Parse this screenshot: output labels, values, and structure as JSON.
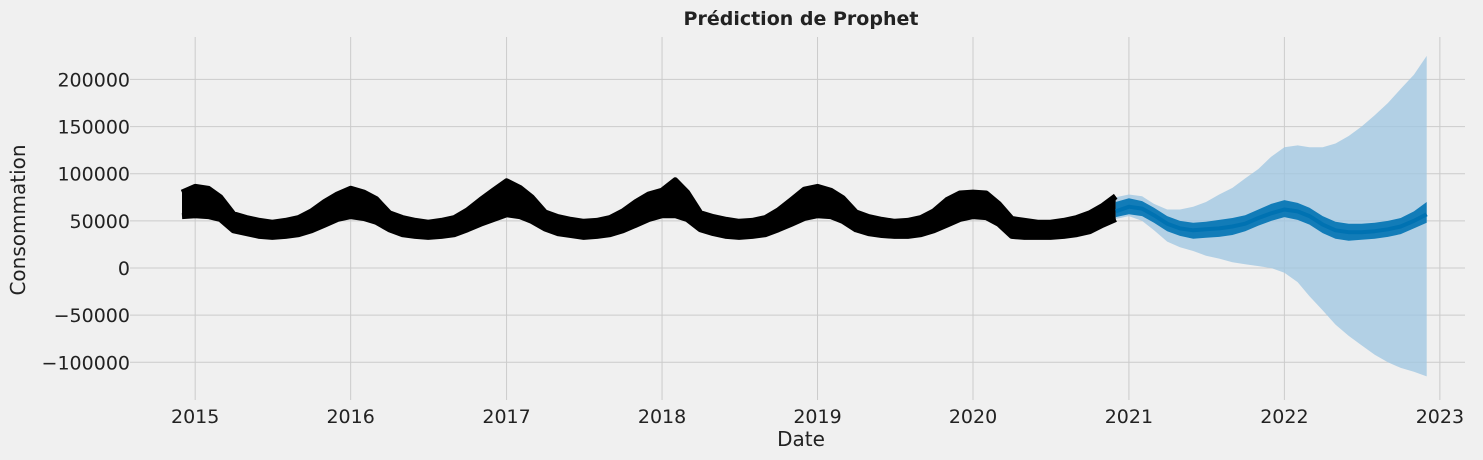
{
  "chart_data": {
    "type": "line",
    "title": "Prédiction de Prophet",
    "xlabel": "Date",
    "ylabel": "Consommation",
    "xlim": [
      "2014-08-01",
      "2023-03-01"
    ],
    "ylim": [
      -140000,
      245000
    ],
    "grid": true,
    "x_ticks": [
      {
        "date": "2015-01-01",
        "label": "2015"
      },
      {
        "date": "2016-01-01",
        "label": "2016"
      },
      {
        "date": "2017-01-01",
        "label": "2017"
      },
      {
        "date": "2018-01-01",
        "label": "2018"
      },
      {
        "date": "2019-01-01",
        "label": "2019"
      },
      {
        "date": "2020-01-01",
        "label": "2020"
      },
      {
        "date": "2021-01-01",
        "label": "2021"
      },
      {
        "date": "2022-01-01",
        "label": "2022"
      },
      {
        "date": "2023-01-01",
        "label": "2023"
      }
    ],
    "y_ticks": [
      {
        "value": 200000,
        "label": "200000"
      },
      {
        "value": 150000,
        "label": "150000"
      },
      {
        "value": 100000,
        "label": "100000"
      },
      {
        "value": 50000,
        "label": "50000"
      },
      {
        "value": 0,
        "label": "0"
      },
      {
        "value": -50000,
        "label": "−50000"
      },
      {
        "value": -100000,
        "label": "−100000"
      }
    ],
    "colors": {
      "observed": "#000000",
      "forecast": "#0072B2",
      "interval": "#9ec6e2",
      "background": "#f0f0f0",
      "grid": "#cbcbcb"
    },
    "series": [
      {
        "role": "observed",
        "x": [
          "2014-12-01",
          "2015-01-01",
          "2015-02-01",
          "2015-03-01",
          "2015-04-01",
          "2015-05-01",
          "2015-06-01",
          "2015-07-01",
          "2015-08-01",
          "2015-09-01",
          "2015-10-01",
          "2015-11-01",
          "2015-12-01",
          "2016-01-01",
          "2016-02-01",
          "2016-03-01",
          "2016-04-01",
          "2016-05-01",
          "2016-06-01",
          "2016-07-01",
          "2016-08-01",
          "2016-09-01",
          "2016-10-01",
          "2016-11-01",
          "2016-12-01",
          "2017-01-01",
          "2017-02-01",
          "2017-03-01",
          "2017-04-01",
          "2017-05-01",
          "2017-06-01",
          "2017-07-01",
          "2017-08-01",
          "2017-09-01",
          "2017-10-01",
          "2017-11-01",
          "2017-12-01",
          "2018-01-01",
          "2018-02-01",
          "2018-03-01",
          "2018-04-01",
          "2018-05-01",
          "2018-06-01",
          "2018-07-01",
          "2018-08-01",
          "2018-09-01",
          "2018-10-01",
          "2018-11-01",
          "2018-12-01",
          "2019-01-01",
          "2019-02-01",
          "2019-03-01",
          "2019-04-01",
          "2019-05-01",
          "2019-06-01",
          "2019-07-01",
          "2019-08-01",
          "2019-09-01",
          "2019-10-01",
          "2019-11-01",
          "2019-12-01",
          "2020-01-01",
          "2020-02-01",
          "2020-03-01",
          "2020-04-01",
          "2020-05-01",
          "2020-06-01",
          "2020-07-01",
          "2020-08-01",
          "2020-09-01",
          "2020-10-01",
          "2020-11-01",
          "2020-12-01"
        ],
        "low": [
          55000,
          56000,
          55000,
          52000,
          40000,
          37000,
          34000,
          33000,
          34000,
          36000,
          40000,
          46000,
          52000,
          55000,
          53000,
          49000,
          41000,
          36000,
          34000,
          33000,
          34000,
          36000,
          41000,
          47000,
          52000,
          57000,
          55000,
          50000,
          42000,
          37000,
          35000,
          33000,
          34000,
          36000,
          40000,
          46000,
          52000,
          56000,
          56000,
          52000,
          41000,
          37000,
          34000,
          33000,
          34000,
          36000,
          41000,
          47000,
          53000,
          56000,
          55000,
          50000,
          41000,
          37000,
          35000,
          34000,
          34000,
          36000,
          40000,
          46000,
          52000,
          55000,
          54000,
          47000,
          34000,
          33000,
          33000,
          33000,
          34000,
          36000,
          39000,
          46000,
          52000
        ],
        "high": [
          80000,
          86000,
          84000,
          75000,
          57000,
          53000,
          50000,
          48000,
          50000,
          53000,
          60000,
          70000,
          78000,
          84000,
          80000,
          73000,
          58000,
          53000,
          50000,
          48000,
          50000,
          53000,
          61000,
          72000,
          82000,
          92000,
          85000,
          75000,
          59000,
          54000,
          51000,
          49000,
          50000,
          53000,
          60000,
          70000,
          78000,
          82000,
          93000,
          80000,
          58000,
          54000,
          51000,
          49000,
          50000,
          53000,
          61000,
          72000,
          83000,
          86000,
          82000,
          74000,
          59000,
          54000,
          51000,
          49000,
          50000,
          53000,
          60000,
          72000,
          79000,
          80000,
          79000,
          68000,
          52000,
          50000,
          48000,
          48000,
          50000,
          53000,
          58000,
          66000,
          76000
        ]
      },
      {
        "role": "forecast",
        "x": [
          "2020-12-01",
          "2021-01-01",
          "2021-02-01",
          "2021-03-01",
          "2021-04-01",
          "2021-05-01",
          "2021-06-01",
          "2021-07-01",
          "2021-08-01",
          "2021-09-01",
          "2021-10-01",
          "2021-11-01",
          "2021-12-01",
          "2022-01-01",
          "2022-02-01",
          "2022-03-01",
          "2022-04-01",
          "2022-05-01",
          "2022-06-01",
          "2022-07-01",
          "2022-08-01",
          "2022-09-01",
          "2022-10-01",
          "2022-11-01",
          "2022-12-01"
        ],
        "yhat": [
          60000,
          65000,
          63000,
          56000,
          47000,
          42000,
          40000,
          41000,
          42000,
          44000,
          47000,
          53000,
          58000,
          62000,
          60000,
          55000,
          46000,
          40000,
          38000,
          38000,
          39000,
          41000,
          44000,
          50000,
          57000
        ],
        "low": [
          54000,
          57000,
          55000,
          48000,
          39000,
          34000,
          31000,
          32000,
          33000,
          35000,
          39000,
          45000,
          50000,
          54000,
          51000,
          46000,
          37000,
          31000,
          29000,
          30000,
          31000,
          33000,
          36000,
          42000,
          48000
        ],
        "high": [
          70000,
          74000,
          71000,
          64000,
          55000,
          50000,
          48000,
          49000,
          51000,
          53000,
          56000,
          62000,
          68000,
          72000,
          69000,
          64000,
          55000,
          49000,
          47000,
          47000,
          48000,
          50000,
          53000,
          60000,
          70000
        ],
        "lower": [
          52000,
          55000,
          50000,
          40000,
          28000,
          22000,
          18000,
          13000,
          10000,
          6000,
          4000,
          2000,
          0,
          -5000,
          -15000,
          -30000,
          -45000,
          -60000,
          -72000,
          -82000,
          -92000,
          -100000,
          -106000,
          -110000,
          -115000
        ],
        "upper": [
          75000,
          78000,
          76000,
          68000,
          62000,
          62000,
          65000,
          70000,
          78000,
          85000,
          95000,
          105000,
          118000,
          128000,
          130000,
          128000,
          128000,
          132000,
          140000,
          150000,
          162000,
          175000,
          190000,
          205000,
          225000
        ]
      }
    ]
  }
}
